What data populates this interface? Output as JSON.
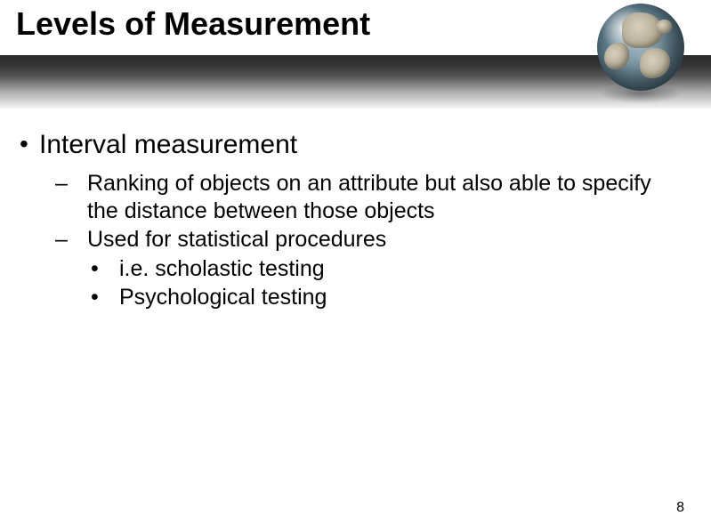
{
  "slide": {
    "title": "Levels of Measurement",
    "page_number": "8",
    "colors": {
      "background": "#ffffff",
      "title_text": "#000000",
      "body_text": "#000000",
      "band_gradient": [
        "#2a2a2a",
        "#333333",
        "#555555",
        "#b0b0b0",
        "#f5f5f5"
      ]
    },
    "typography": {
      "font_family": "Arial",
      "title_size_pt": 36,
      "title_weight": "bold",
      "lvl1_size_pt": 30,
      "lvl2_size_pt": 25,
      "lvl3_size_pt": 25
    },
    "bullets": {
      "lvl1": [
        {
          "text": "Interval measurement"
        }
      ],
      "lvl2": [
        {
          "text": "Ranking of objects on an attribute but also able to specify the distance between those objects"
        },
        {
          "text": "Used for statistical procedures"
        }
      ],
      "lvl3": [
        {
          "text": "i.e. scholastic testing"
        },
        {
          "text": "Psychological testing"
        }
      ]
    },
    "decorations": {
      "globe": {
        "ocean_colors": [
          "#9fb8c4",
          "#7c99a8",
          "#4e6b7a",
          "#2e4450"
        ],
        "land_colors": [
          "#d6d0be",
          "#b8b19a",
          "#8a8468"
        ],
        "highlight": "#ffffff"
      }
    }
  }
}
